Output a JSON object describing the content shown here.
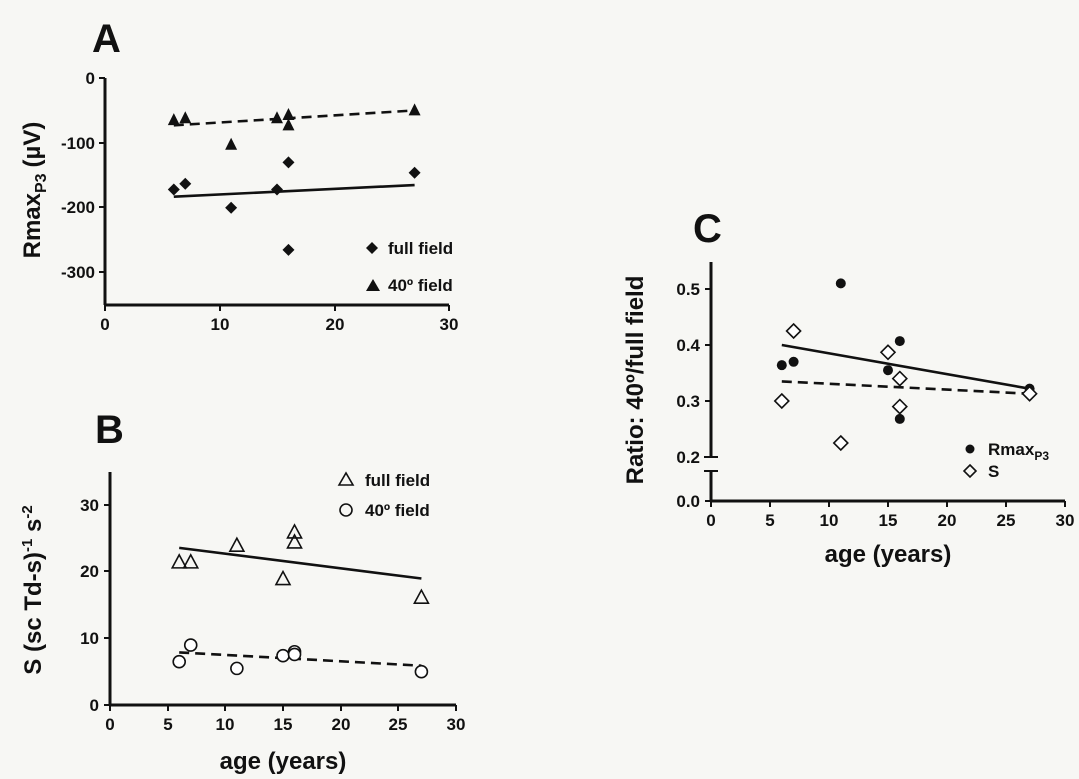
{
  "chart_data": [
    {
      "id": "A",
      "type": "scatter",
      "panel_label": "A",
      "xlabel": "",
      "ylabel": "Rmax",
      "ylabel_sub": "P3",
      "ylabel_unit": "(µV)",
      "xlim": [
        0,
        30
      ],
      "ylim": [
        -350,
        0
      ],
      "xticks": [
        0,
        10,
        20,
        30
      ],
      "yticks": [
        0,
        -100,
        -200,
        -300
      ],
      "legend_position": "bottom-right",
      "series": [
        {
          "name": "full field",
          "marker": "diamond-filled",
          "line": "solid",
          "points": [
            [
              6,
              -172
            ],
            [
              7,
              -163
            ],
            [
              11,
              -200
            ],
            [
              15,
              -172
            ],
            [
              16,
              -130
            ],
            [
              16,
              -265
            ],
            [
              27,
              -146
            ]
          ],
          "fit": [
            [
              6,
              -183
            ],
            [
              27,
              -165
            ]
          ]
        },
        {
          "name": "40º field",
          "marker": "triangle-filled",
          "line": "dashed",
          "points": [
            [
              6,
              -65
            ],
            [
              7,
              -62
            ],
            [
              11,
              -103
            ],
            [
              15,
              -62
            ],
            [
              16,
              -57
            ],
            [
              16,
              -73
            ],
            [
              27,
              -50
            ]
          ],
          "fit": [
            [
              6,
              -73
            ],
            [
              27,
              -50
            ]
          ]
        }
      ]
    },
    {
      "id": "B",
      "type": "scatter",
      "panel_label": "B",
      "xlabel": "age (years)",
      "ylabel": "S (sc Td-s)",
      "ylabel_sup1": "-1",
      "ylabel_mid": " s",
      "ylabel_sup2": "-2",
      "xlim": [
        0,
        30
      ],
      "ylim": [
        0,
        35
      ],
      "xticks": [
        0,
        5,
        10,
        15,
        20,
        25,
        30
      ],
      "yticks": [
        0,
        10,
        20,
        30
      ],
      "legend_position": "top-right",
      "series": [
        {
          "name": "full field",
          "marker": "triangle-open",
          "line": "solid",
          "points": [
            [
              6,
              21.5
            ],
            [
              7,
              21.5
            ],
            [
              11,
              24
            ],
            [
              15,
              19
            ],
            [
              16,
              26
            ],
            [
              16,
              24.5
            ],
            [
              27,
              16.2
            ]
          ],
          "fit": [
            [
              6,
              23.6
            ],
            [
              27,
              19
            ]
          ]
        },
        {
          "name": "40º field",
          "marker": "circle-open",
          "line": "dashed",
          "points": [
            [
              6,
              6.5
            ],
            [
              7,
              9
            ],
            [
              11,
              5.5
            ],
            [
              15,
              7.4
            ],
            [
              16,
              8
            ],
            [
              16,
              7.6
            ],
            [
              27,
              5
            ]
          ],
          "fit": [
            [
              6,
              7.9
            ],
            [
              27,
              5.9
            ]
          ]
        }
      ]
    },
    {
      "id": "C",
      "type": "scatter",
      "panel_label": "C",
      "xlabel": "age (years)",
      "ylabel": "Ratio: 40º/full field",
      "xlim": [
        0,
        30
      ],
      "ylim": [
        0,
        0.55
      ],
      "axis_break": [
        0.05,
        0.2
      ],
      "xticks": [
        0,
        5,
        10,
        15,
        20,
        25,
        30
      ],
      "yticks": [
        "0.0",
        "0.2",
        "0.3",
        "0.4",
        "0.5"
      ],
      "legend_position": "bottom-right",
      "series": [
        {
          "name": "Rmax",
          "name_sub": "P3",
          "marker": "circle-filled",
          "line": "solid",
          "points": [
            [
              6,
              0.364
            ],
            [
              7,
              0.37
            ],
            [
              11,
              0.51
            ],
            [
              15,
              0.355
            ],
            [
              16,
              0.407
            ],
            [
              16,
              0.268
            ],
            [
              27,
              0.322
            ]
          ],
          "fit": [
            [
              6,
              0.4
            ],
            [
              27,
              0.322
            ]
          ]
        },
        {
          "name": "S",
          "marker": "diamond-open",
          "line": "dashed",
          "points": [
            [
              6,
              0.3
            ],
            [
              7,
              0.425
            ],
            [
              11,
              0.225
            ],
            [
              15,
              0.387
            ],
            [
              16,
              0.34
            ],
            [
              16,
              0.29
            ],
            [
              27,
              0.313
            ]
          ],
          "fit": [
            [
              6,
              0.335
            ],
            [
              27,
              0.313
            ]
          ]
        }
      ]
    }
  ]
}
